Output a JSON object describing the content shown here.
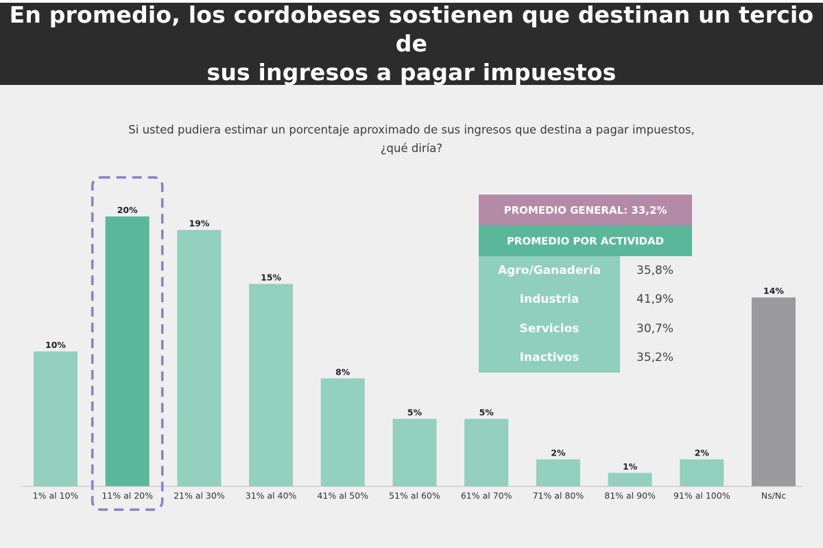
{
  "header": {
    "title": "En promedio, los cordobeses sostienen que destinan un tercio de\nsus ingresos a pagar impuestos"
  },
  "question": "Si usted pudiera estimar un porcentaje aproximado de sus ingresos que destina a pagar impuestos,\n¿qué diría?",
  "chart_data": {
    "type": "bar",
    "title": "En promedio, los cordobeses sostienen que destinan un tercio de sus ingresos a pagar impuestos",
    "subtitle": "Si usted pudiera estimar un porcentaje aproximado de sus ingresos que destina a pagar impuestos, ¿qué diría?",
    "categories": [
      "1% al 10%",
      "11% al 20%",
      "21% al 30%",
      "31% al 40%",
      "41% al 50%",
      "51% al 60%",
      "61% al 70%",
      "71% al 80%",
      "81% al 90%",
      "91% al 100%",
      "Ns/Nc"
    ],
    "values": [
      10,
      20,
      19,
      15,
      8,
      5,
      5,
      2,
      1,
      2,
      14
    ],
    "value_labels": [
      "10%",
      "20%",
      "19%",
      "15%",
      "8%",
      "5%",
      "5%",
      "2%",
      "1%",
      "2%",
      "14%"
    ],
    "highlight_index": 1,
    "xlabel": "",
    "ylabel": "",
    "ylim": [
      0,
      20
    ],
    "grid": false,
    "colors": {
      "default": "#93d0be",
      "highlight": "#5bb89d",
      "no_answer": "#9b9a9c",
      "outline": "#8c7fc4"
    }
  },
  "averages": {
    "general_label": "PROMEDIO GENERAL: 33,2%",
    "by_activity_label": "PROMEDIO POR ACTIVIDAD",
    "rows": [
      {
        "name": "Agro/Ganadería",
        "value": "35,8%"
      },
      {
        "name": "Industria",
        "value": "41,9%"
      },
      {
        "name": "Servicios",
        "value": "30,7%"
      },
      {
        "name": "Inactivos",
        "value": "35,2%"
      }
    ]
  }
}
